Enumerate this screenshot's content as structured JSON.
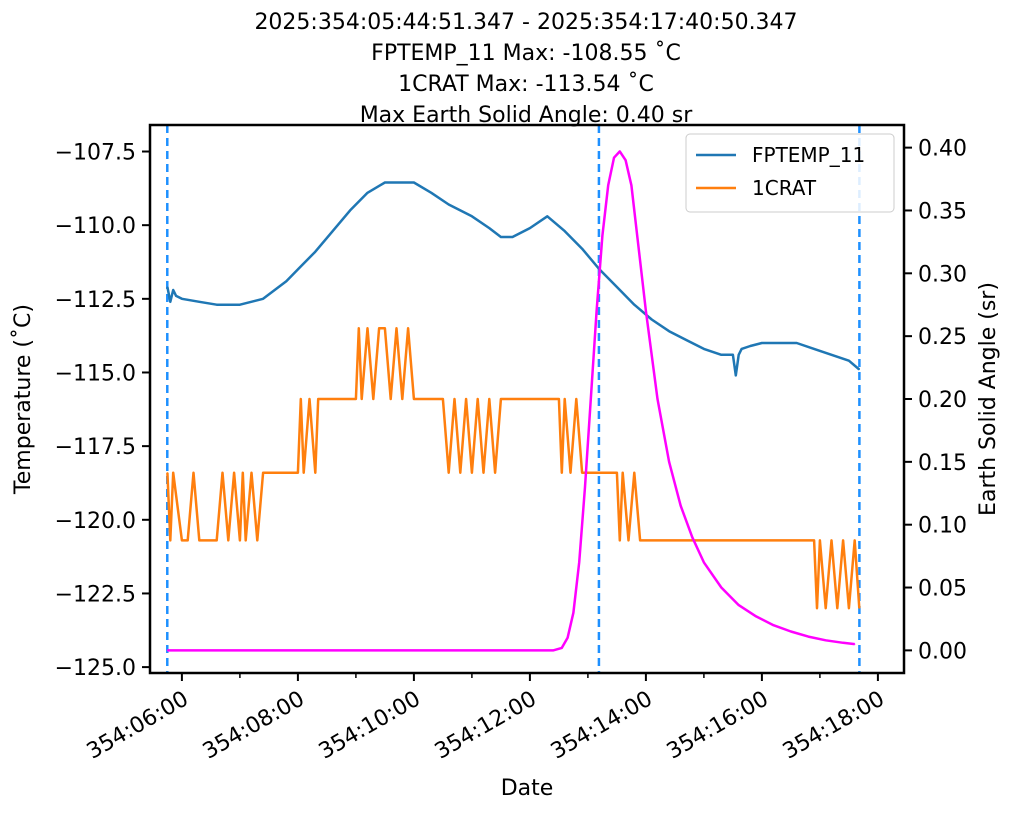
{
  "chart_data": {
    "type": "line",
    "title_lines": [
      "2025:354:05:44:51.347 - 2025:354:17:40:50.347",
      "FPTEMP_11 Max: -108.55 ˚C",
      "1CRAT Max: -113.54 ˚C",
      "Max Earth Solid Angle: 0.40 sr"
    ],
    "xlabel": "Date",
    "ylabel_left": "Temperature (˚C)",
    "ylabel_right": "Earth Solid Angle (sr)",
    "x_unit": "hours of day 354",
    "xlim": [
      5.45,
      18.45
    ],
    "ylim_left": [
      -125.2,
      -106.6
    ],
    "ylim_right": [
      -0.018,
      0.418
    ],
    "x_ticks": [
      {
        "value": 6,
        "label": "354:06:00"
      },
      {
        "value": 8,
        "label": "354:08:00"
      },
      {
        "value": 10,
        "label": "354:10:00"
      },
      {
        "value": 12,
        "label": "354:12:00"
      },
      {
        "value": 14,
        "label": "354:14:00"
      },
      {
        "value": 16,
        "label": "354:16:00"
      },
      {
        "value": 18,
        "label": "354:18:00"
      }
    ],
    "x_minor_ticks": [
      7,
      9,
      11,
      13,
      15,
      17
    ],
    "y_left_ticks": [
      {
        "value": -107.5,
        "label": "−107.5"
      },
      {
        "value": -110.0,
        "label": "−110.0"
      },
      {
        "value": -112.5,
        "label": "−112.5"
      },
      {
        "value": -115.0,
        "label": "−115.0"
      },
      {
        "value": -117.5,
        "label": "−117.5"
      },
      {
        "value": -120.0,
        "label": "−120.0"
      },
      {
        "value": -122.5,
        "label": "−122.5"
      },
      {
        "value": -125.0,
        "label": "−125.0"
      }
    ],
    "y_right_ticks": [
      {
        "value": 0.0,
        "label": "0.00"
      },
      {
        "value": 0.05,
        "label": "0.05"
      },
      {
        "value": 0.1,
        "label": "0.10"
      },
      {
        "value": 0.15,
        "label": "0.15"
      },
      {
        "value": 0.2,
        "label": "0.20"
      },
      {
        "value": 0.25,
        "label": "0.25"
      },
      {
        "value": 0.3,
        "label": "0.30"
      },
      {
        "value": 0.35,
        "label": "0.35"
      },
      {
        "value": 0.4,
        "label": "0.40"
      }
    ],
    "vlines": [
      {
        "x": 5.748,
        "color": "#1e90ff"
      },
      {
        "x": 13.19,
        "color": "#1e90ff"
      },
      {
        "x": 17.681,
        "color": "#1e90ff"
      }
    ],
    "legend": {
      "placement": "top-right"
    },
    "series": [
      {
        "name": "FPTEMP_11",
        "axis": "left",
        "color": "#1f77b4",
        "x": [
          5.75,
          5.8,
          5.85,
          5.9,
          6.0,
          6.3,
          6.6,
          6.8,
          7.0,
          7.4,
          7.6,
          7.8,
          8.0,
          8.3,
          8.6,
          8.9,
          9.2,
          9.5,
          9.8,
          10.0,
          10.3,
          10.6,
          11.0,
          11.3,
          11.5,
          11.7,
          12.0,
          12.3,
          12.6,
          12.9,
          13.2,
          13.5,
          13.8,
          14.1,
          14.4,
          14.7,
          15.0,
          15.3,
          15.5,
          15.55,
          15.6,
          15.65,
          15.8,
          16.0,
          16.3,
          16.6,
          16.9,
          17.2,
          17.5,
          17.68
        ],
        "y": [
          -112.1,
          -112.6,
          -112.2,
          -112.4,
          -112.5,
          -112.6,
          -112.7,
          -112.7,
          -112.7,
          -112.5,
          -112.2,
          -111.9,
          -111.5,
          -110.9,
          -110.2,
          -109.5,
          -108.9,
          -108.55,
          -108.55,
          -108.55,
          -108.9,
          -109.3,
          -109.7,
          -110.1,
          -110.4,
          -110.4,
          -110.1,
          -109.7,
          -110.2,
          -110.8,
          -111.5,
          -112.1,
          -112.7,
          -113.2,
          -113.6,
          -113.9,
          -114.2,
          -114.4,
          -114.4,
          -115.1,
          -114.4,
          -114.2,
          -114.1,
          -114.0,
          -114.0,
          -114.0,
          -114.2,
          -114.4,
          -114.6,
          -114.9
        ]
      },
      {
        "name": "1CRAT",
        "axis": "left",
        "color": "#ff7f0e",
        "x": [
          5.75,
          5.8,
          5.85,
          6.0,
          6.1,
          6.2,
          6.3,
          6.6,
          6.7,
          6.8,
          6.9,
          7.0,
          7.05,
          7.1,
          7.2,
          7.3,
          7.4,
          7.5,
          7.6,
          8.0,
          8.05,
          8.1,
          8.2,
          8.3,
          8.35,
          8.4,
          8.6,
          8.8,
          9.0,
          9.05,
          9.1,
          9.2,
          9.3,
          9.4,
          9.5,
          9.6,
          9.7,
          9.8,
          9.9,
          10.0,
          10.5,
          10.6,
          10.7,
          10.8,
          10.9,
          11.0,
          11.1,
          11.2,
          11.3,
          11.4,
          11.5,
          12.0,
          12.5,
          12.55,
          12.6,
          12.7,
          12.8,
          12.9,
          13.0,
          13.5,
          13.55,
          13.6,
          13.7,
          13.8,
          13.9,
          14.0,
          14.5,
          15.0,
          15.5,
          16.0,
          16.5,
          16.9,
          16.95,
          17.0,
          17.1,
          17.2,
          17.3,
          17.4,
          17.5,
          17.6,
          17.68
        ],
        "y": [
          -118.4,
          -120.7,
          -118.4,
          -120.7,
          -120.7,
          -118.4,
          -120.7,
          -120.7,
          -118.4,
          -120.7,
          -118.4,
          -120.7,
          -118.4,
          -120.7,
          -118.4,
          -120.7,
          -118.4,
          -118.4,
          -118.4,
          -118.4,
          -115.9,
          -118.4,
          -115.9,
          -118.4,
          -115.9,
          -115.9,
          -115.9,
          -115.9,
          -115.9,
          -113.5,
          -115.9,
          -113.5,
          -115.9,
          -113.5,
          -113.5,
          -115.9,
          -113.5,
          -115.9,
          -113.5,
          -115.9,
          -115.9,
          -118.4,
          -115.9,
          -118.4,
          -115.9,
          -118.4,
          -115.9,
          -118.4,
          -115.9,
          -118.4,
          -115.9,
          -115.9,
          -115.9,
          -118.4,
          -115.9,
          -118.4,
          -115.9,
          -118.4,
          -118.4,
          -118.4,
          -120.7,
          -118.4,
          -120.7,
          -118.4,
          -120.7,
          -120.7,
          -120.7,
          -120.7,
          -120.7,
          -120.7,
          -120.7,
          -120.7,
          -123.0,
          -120.7,
          -123.0,
          -120.7,
          -123.0,
          -120.7,
          -123.0,
          -120.7,
          -123.0
        ]
      },
      {
        "name": "Earth Solid Angle",
        "axis": "right",
        "color": "#ff00ff",
        "x": [
          5.75,
          6.5,
          7.5,
          8.5,
          9.5,
          10.5,
          11.5,
          12.0,
          12.4,
          12.55,
          12.65,
          12.75,
          12.85,
          12.95,
          13.05,
          13.15,
          13.25,
          13.35,
          13.45,
          13.55,
          13.65,
          13.75,
          13.85,
          14.0,
          14.2,
          14.4,
          14.6,
          14.8,
          15.0,
          15.3,
          15.6,
          15.9,
          16.2,
          16.5,
          16.8,
          17.1,
          17.4,
          17.6
        ],
        "y": [
          0.0,
          0.0,
          0.0,
          0.0,
          0.0,
          0.0,
          0.0,
          0.0,
          0.0,
          0.002,
          0.01,
          0.03,
          0.07,
          0.13,
          0.2,
          0.27,
          0.33,
          0.37,
          0.392,
          0.397,
          0.39,
          0.37,
          0.33,
          0.27,
          0.2,
          0.15,
          0.115,
          0.09,
          0.07,
          0.05,
          0.036,
          0.027,
          0.02,
          0.015,
          0.011,
          0.008,
          0.006,
          0.005
        ]
      }
    ]
  }
}
